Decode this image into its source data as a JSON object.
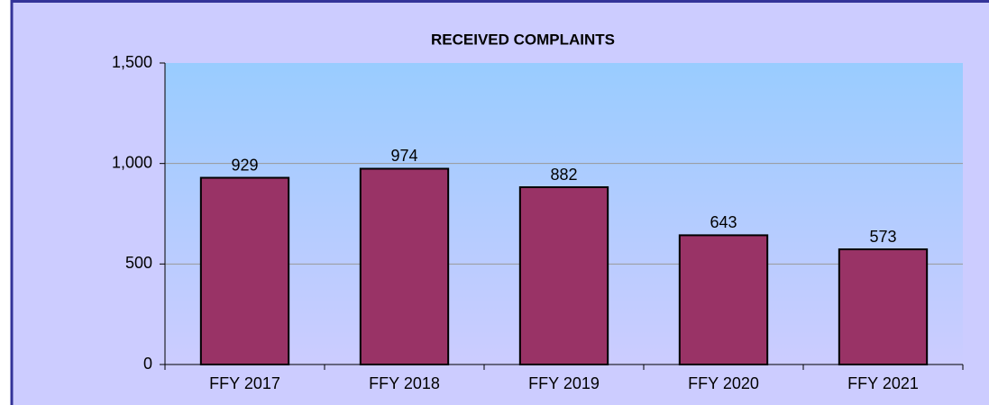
{
  "chart_data": {
    "type": "bar",
    "title": "RECEIVED COMPLAINTS",
    "categories": [
      "FFY 2017",
      "FFY 2018",
      "FFY 2019",
      "FFY 2020",
      "FFY 2021"
    ],
    "values": [
      929,
      974,
      882,
      643,
      573
    ],
    "color": "#993366",
    "ylim": [
      0,
      1500
    ],
    "yticks": [
      0,
      500,
      {
        "value": 1000,
        "label": "1,000"
      },
      {
        "value": 1500,
        "label": "1,500"
      }
    ],
    "grid": true
  }
}
